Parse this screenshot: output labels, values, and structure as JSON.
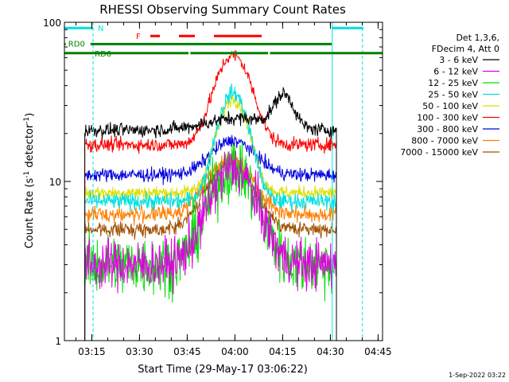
{
  "chart_data": {
    "type": "line",
    "title": "RHESSI Observing Summary Count Rates",
    "xlabel": "Start Time (29-May-17 03:06:22)",
    "ylabel_main": "Count Rate (s",
    "ylabel_sup": "-1",
    "ylabel_tail": " detector",
    "ylabel_end": ")",
    "x_unit": "minutes after 03:06:22",
    "x_range": [
      0,
      100
    ],
    "y_scale": "log",
    "y_range": [
      1,
      100
    ],
    "x_ticks": [
      {
        "label": "03:15",
        "t": 8.6
      },
      {
        "label": "03:30",
        "t": 23.6
      },
      {
        "label": "03:45",
        "t": 38.6
      },
      {
        "label": "04:00",
        "t": 53.6
      },
      {
        "label": "04:15",
        "t": 68.6
      },
      {
        "label": "04:30",
        "t": 83.6
      },
      {
        "label": "04:45",
        "t": 98.6
      }
    ],
    "y_ticks": [
      {
        "label": "100",
        "v": 100
      },
      {
        "label": "10",
        "v": 10
      },
      {
        "label": "1",
        "v": 1
      }
    ],
    "data_window": [
      6.4,
      85.5
    ],
    "legend_header": [
      "Det 1,3,6,",
      "FDecim 4, Att 0"
    ],
    "legend_position": "right",
    "series": [
      {
        "name": "3 - 6 keV",
        "color": "#000000",
        "base": 21,
        "peak": 25,
        "peak_t": 55,
        "width": 14,
        "noise": 0.05,
        "bump": 34,
        "bump_t": 69,
        "bump_w": 4
      },
      {
        "name": "6 - 12 keV",
        "color": "#e000e0",
        "base": 3.0,
        "peak": 12,
        "peak_t": 53,
        "width": 9,
        "noise": 0.18
      },
      {
        "name": "12 - 25 keV",
        "color": "#00e000",
        "base": 3.0,
        "peak": 12,
        "peak_t": 53,
        "width": 9,
        "noise": 0.22
      },
      {
        "name": "25 - 50 keV",
        "color": "#00e0e0",
        "base": 7.5,
        "peak": 36,
        "peak_t": 53,
        "width": 6,
        "noise": 0.06
      },
      {
        "name": "50 - 100 keV",
        "color": "#e0e000",
        "base": 8.5,
        "peak": 33,
        "peak_t": 53,
        "width": 6,
        "noise": 0.05
      },
      {
        "name": "100 - 300 keV",
        "color": "#ff0000",
        "base": 17,
        "peak": 62,
        "peak_t": 53,
        "width": 7,
        "noise": 0.05
      },
      {
        "name": "300 - 800 keV",
        "color": "#0000e0",
        "base": 11,
        "peak": 18,
        "peak_t": 53,
        "width": 9,
        "noise": 0.05
      },
      {
        "name": "800 - 7000 keV",
        "color": "#ff8000",
        "base": 6.2,
        "peak": 14,
        "peak_t": 52,
        "width": 9,
        "noise": 0.06
      },
      {
        "name": "7000 - 15000 keV",
        "color": "#a05000",
        "base": 5.0,
        "peak": 13,
        "peak_t": 52,
        "width": 9,
        "noise": 0.05
      }
    ],
    "flags": [
      {
        "label": "N",
        "color": "#00e0e0",
        "y_value": 92,
        "segments": [
          [
            0,
            9
          ],
          [
            84,
            94
          ]
        ]
      },
      {
        "label": "F",
        "color": "#ff0000",
        "y_value": 82,
        "segments": [
          [
            27,
            30
          ],
          [
            36,
            41
          ],
          [
            47,
            62
          ]
        ]
      },
      {
        "label": "RD0",
        "color": "#008000",
        "y_value": 73,
        "segments": [
          [
            0,
            0.4
          ],
          [
            8.2,
            84
          ]
        ]
      },
      {
        "label": "RD6",
        "color": "#008000",
        "y_value": 64,
        "segments": [
          [
            0,
            39
          ],
          [
            39.6,
            64
          ],
          [
            64.6,
            100
          ]
        ]
      }
    ],
    "vlines": [
      {
        "t": 84.2,
        "color": "#00e0e0",
        "style": "solid"
      },
      {
        "t": 9.0,
        "color": "#00e0e0",
        "style": "dashed"
      },
      {
        "t": 93.7,
        "color": "#00e0e0",
        "style": "dashed"
      }
    ],
    "grid": false
  },
  "footer": {
    "timestamp": "1-Sep-2022 03:22"
  }
}
